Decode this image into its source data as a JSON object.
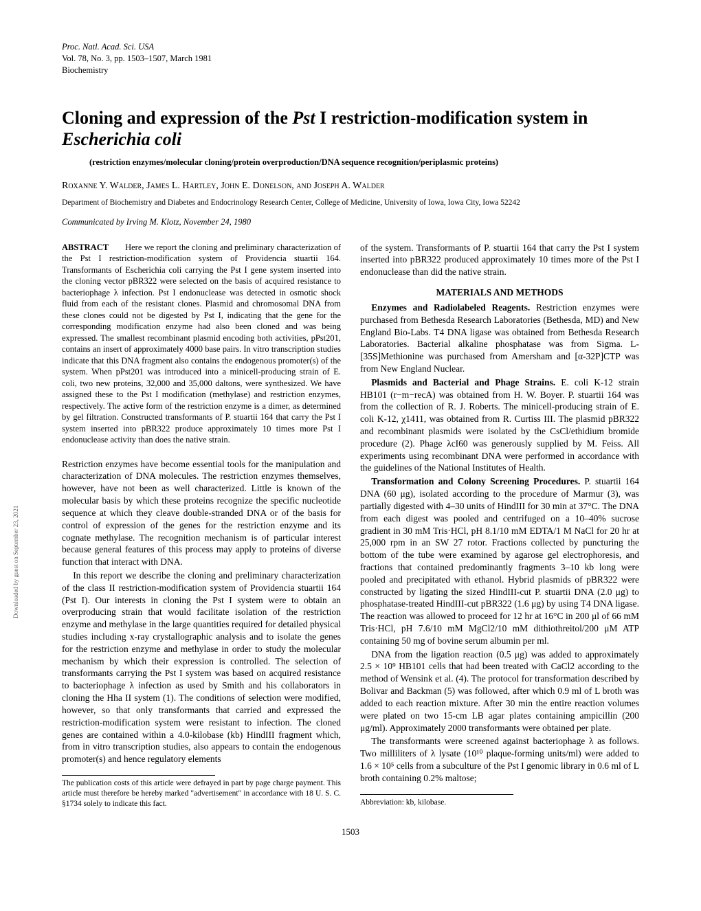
{
  "journal": {
    "line1": "Proc. Natl. Acad. Sci. USA",
    "line2": "Vol. 78, No. 3, pp. 1503–1507, March 1981",
    "line3": "Biochemistry"
  },
  "title_plain": "Cloning and expression of the ",
  "title_italic1": "Pst",
  "title_mid": " I restriction-modification system in ",
  "title_italic2": "Escherichia coli",
  "subtitle": "(restriction enzymes/molecular cloning/protein overproduction/DNA sequence recognition/periplasmic proteins)",
  "authors": "Roxanne Y. Walder, James L. Hartley, John E. Donelson, and Joseph A. Walder",
  "affiliation": "Department of Biochemistry and Diabetes and Endocrinology Research Center, College of Medicine, University of Iowa, Iowa City, Iowa 52242",
  "communicated": "Communicated by Irving M. Klotz, November 24, 1980",
  "abstract": {
    "label": "ABSTRACT",
    "text": "Here we report the cloning and preliminary characterization of the Pst I restriction-modification system of Providencia stuartii 164. Transformants of Escherichia coli carrying the Pst I gene system inserted into the cloning vector pBR322 were selected on the basis of acquired resistance to bacteriophage λ infection. Pst I endonuclease was detected in osmotic shock fluid from each of the resistant clones. Plasmid and chromosomal DNA from these clones could not be digested by Pst I, indicating that the gene for the corresponding modification enzyme had also been cloned and was being expressed. The smallest recombinant plasmid encoding both activities, pPst201, contains an insert of approximately 4000 base pairs. In vitro transcription studies indicate that this DNA fragment also contains the endogenous promoter(s) of the system. When pPst201 was introduced into a minicell-producing strain of E. coli, two new proteins, 32,000 and 35,000 daltons, were synthesized. We have assigned these to the Pst I modification (methylase) and restriction enzymes, respectively. The active form of the restriction enzyme is a dimer, as determined by gel filtration. Constructed transformants of P. stuartii 164 that carry the Pst I system inserted into pBR322 produce approximately 10 times more Pst I endonuclease activity than does the native strain."
  },
  "left_paragraphs": [
    "Restriction enzymes have become essential tools for the manipulation and characterization of DNA molecules. The restriction enzymes themselves, however, have not been as well characterized. Little is known of the molecular basis by which these proteins recognize the specific nucleotide sequence at which they cleave double-stranded DNA or of the basis for control of expression of the genes for the restriction enzyme and its cognate methylase. The recognition mechanism is of particular interest because general features of this process may apply to proteins of diverse function that interact with DNA.",
    "In this report we describe the cloning and preliminary characterization of the class II restriction-modification system of Providencia stuartii 164 (Pst I). Our interests in cloning the Pst I system were to obtain an overproducing strain that would facilitate isolation of the restriction enzyme and methylase in the large quantities required for detailed physical studies including x-ray crystallographic analysis and to isolate the genes for the restriction enzyme and methylase in order to study the molecular mechanism by which their expression is controlled. The selection of transformants carrying the Pst I system was based on acquired resistance to bacteriophage λ infection as used by Smith and his collaborators in cloning the Hha II system (1). The conditions of selection were modified, however, so that only transformants that carried and expressed the restriction-modification system were resistant to infection. The cloned genes are contained within a 4.0-kilobase (kb) HindIII fragment which, from in vitro transcription studies, also appears to contain the endogenous promoter(s) and hence regulatory elements"
  ],
  "left_footnote": "The publication costs of this article were defrayed in part by page charge payment. This article must therefore be hereby marked \"advertisement\" in accordance with 18 U. S. C. §1734 solely to indicate this fact.",
  "right_intro": "of the system. Transformants of P. stuartii 164 that carry the Pst I system inserted into pBR322 produced approximately 10 times more of the Pst I endonuclease than did the native strain.",
  "section_heading": "MATERIALS AND METHODS",
  "right_paragraphs": [
    {
      "lead": "Enzymes and Radiolabeled Reagents.",
      "text": " Restriction enzymes were purchased from Bethesda Research Laboratories (Bethesda, MD) and New England Bio-Labs. T4 DNA ligase was obtained from Bethesda Research Laboratories. Bacterial alkaline phosphatase was from Sigma. L-[35S]Methionine was purchased from Amersham and [α-32P]CTP was from New England Nuclear."
    },
    {
      "lead": "Plasmids and Bacterial and Phage Strains.",
      "text": " E. coli K-12 strain HB101 (r−m−recA) was obtained from H. W. Boyer. P. stuartii 164 was from the collection of R. J. Roberts. The minicell-producing strain of E. coli K-12, χ1411, was obtained from R. Curtiss III. The plasmid pBR322 and recombinant plasmids were isolated by the CsCl/ethidium bromide procedure (2). Phage λcI60 was generously supplied by M. Feiss. All experiments using recombinant DNA were performed in accordance with the guidelines of the National Institutes of Health."
    },
    {
      "lead": "Transformation and Colony Screening Procedures.",
      "text": " P. stuartii 164 DNA (60 μg), isolated according to the procedure of Marmur (3), was partially digested with 4–30 units of HindIII for 30 min at 37°C. The DNA from each digest was pooled and centrifuged on a 10–40% sucrose gradient in 30 mM Tris·HCl, pH 8.1/10 mM EDTA/1 M NaCl for 20 hr at 25,000 rpm in an SW 27 rotor. Fractions collected by puncturing the bottom of the tube were examined by agarose gel electrophoresis, and fractions that contained predominantly fragments 3–10 kb long were pooled and precipitated with ethanol. Hybrid plasmids of pBR322 were constructed by ligating the sized HindIII-cut P. stuartii DNA (2.0 μg) to phosphatase-treated HindIII-cut pBR322 (1.6 μg) by using T4 DNA ligase. The reaction was allowed to proceed for 12 hr at 16°C in 200 μl of 66 mM Tris·HCl, pH 7.6/10 mM MgCl2/10 mM dithiothreitol/200 μM ATP containing 50 mg of bovine serum albumin per ml."
    },
    {
      "lead": "",
      "text": "DNA from the ligation reaction (0.5 μg) was added to approximately 2.5 × 10⁹ HB101 cells that had been treated with CaCl2 according to the method of Wensink et al. (4). The protocol for transformation described by Bolivar and Backman (5) was followed, after which 0.9 ml of L broth was added to each reaction mixture. After 30 min the entire reaction volumes were plated on two 15-cm LB agar plates containing ampicillin (200 μg/ml). Approximately 2000 transformants were obtained per plate."
    },
    {
      "lead": "",
      "text": "The transformants were screened against bacteriophage λ as follows. Two milliliters of λ lysate (10¹⁰ plaque-forming units/ml) were added to 1.6 × 10⁵ cells from a subculture of the Pst I genomic library in 0.6 ml of L broth containing 0.2% maltose;"
    }
  ],
  "right_footnote": "Abbreviation: kb, kilobase.",
  "page_number": "1503",
  "side_note": "Downloaded by guest on September 23, 2021"
}
